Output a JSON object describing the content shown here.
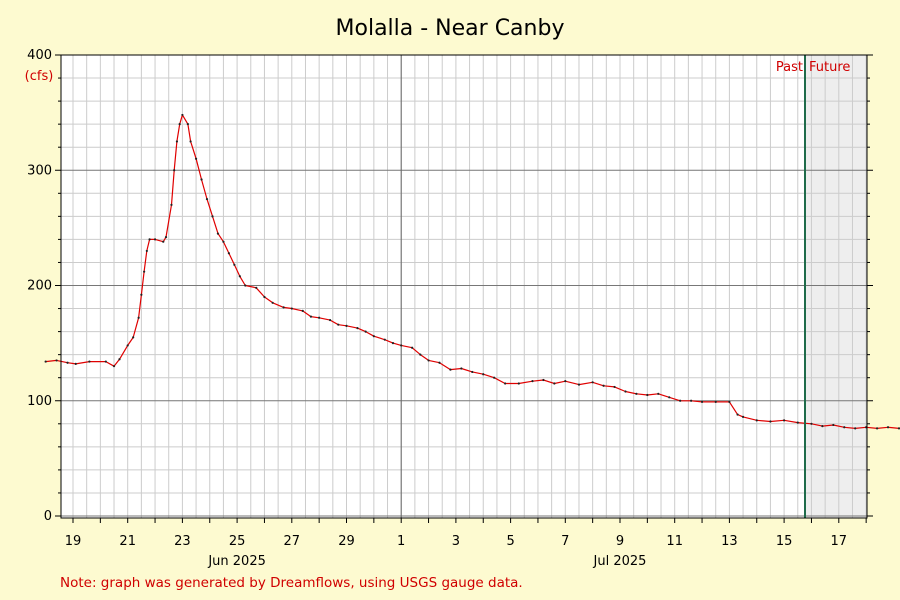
{
  "chart_data": {
    "type": "line",
    "title": "Molalla - Near Canby",
    "ylabel": "(cfs)",
    "xlabel": "",
    "ylim": [
      0,
      400
    ],
    "y_ticks": [
      0,
      100,
      200,
      300,
      400
    ],
    "x_tick_labels": [
      "19",
      "21",
      "23",
      "25",
      "27",
      "29",
      "1",
      "3",
      "5",
      "7",
      "9",
      "11",
      "13",
      "15",
      "17"
    ],
    "month_labels": [
      {
        "label": "Jun 2025",
        "at": 25
      },
      {
        "label": "Jul 2025",
        "at": 39
      }
    ],
    "past_label": "Past",
    "future_label": "Future",
    "note": "Note: graph was generated by Dreamflows, using USGS gauge data.",
    "grid": true,
    "colors": {
      "series": "#e00000",
      "now_line": "#1f6b4a",
      "future_shade": "#eeeeee",
      "background": "#fdfad0",
      "plot_background": "#ffffff"
    },
    "series": [
      {
        "points": [
          [
            18.0,
            134
          ],
          [
            18.4,
            135
          ],
          [
            18.8,
            133
          ],
          [
            19.1,
            132
          ],
          [
            19.6,
            134
          ],
          [
            20.2,
            134
          ],
          [
            20.5,
            130
          ],
          [
            20.7,
            136
          ],
          [
            21.0,
            148
          ],
          [
            21.2,
            155
          ],
          [
            21.4,
            172
          ],
          [
            21.5,
            192
          ],
          [
            21.6,
            212
          ],
          [
            21.7,
            230
          ],
          [
            21.8,
            240
          ],
          [
            22.0,
            240
          ],
          [
            22.3,
            238
          ],
          [
            22.4,
            242
          ],
          [
            22.6,
            270
          ],
          [
            22.7,
            300
          ],
          [
            22.8,
            325
          ],
          [
            22.9,
            340
          ],
          [
            23.0,
            348
          ],
          [
            23.2,
            340
          ],
          [
            23.3,
            325
          ],
          [
            23.5,
            310
          ],
          [
            23.7,
            292
          ],
          [
            23.9,
            275
          ],
          [
            24.1,
            260
          ],
          [
            24.3,
            245
          ],
          [
            24.5,
            238
          ],
          [
            24.7,
            228
          ],
          [
            24.9,
            218
          ],
          [
            25.1,
            208
          ],
          [
            25.3,
            200
          ],
          [
            25.7,
            198
          ],
          [
            26.0,
            190
          ],
          [
            26.3,
            185
          ],
          [
            26.7,
            181
          ],
          [
            27.0,
            180
          ],
          [
            27.4,
            178
          ],
          [
            27.7,
            173
          ],
          [
            28.0,
            172
          ],
          [
            28.4,
            170
          ],
          [
            28.7,
            166
          ],
          [
            29.0,
            165
          ],
          [
            29.4,
            163
          ],
          [
            29.7,
            160
          ],
          [
            30.0,
            156
          ],
          [
            30.4,
            153
          ],
          [
            30.7,
            150
          ],
          [
            31.0,
            148
          ],
          [
            31.4,
            146
          ],
          [
            31.7,
            140
          ],
          [
            32.0,
            135
          ],
          [
            32.4,
            133
          ],
          [
            32.8,
            127
          ],
          [
            33.2,
            128
          ],
          [
            33.6,
            125
          ],
          [
            34.0,
            123
          ],
          [
            34.4,
            120
          ],
          [
            34.8,
            115
          ],
          [
            35.3,
            115
          ],
          [
            35.8,
            117
          ],
          [
            36.2,
            118
          ],
          [
            36.6,
            115
          ],
          [
            37.0,
            117
          ],
          [
            37.5,
            114
          ],
          [
            38.0,
            116
          ],
          [
            38.4,
            113
          ],
          [
            38.8,
            112
          ],
          [
            39.2,
            108
          ],
          [
            39.6,
            106
          ],
          [
            40.0,
            105
          ],
          [
            40.4,
            106
          ],
          [
            40.8,
            103
          ],
          [
            41.2,
            100
          ],
          [
            41.6,
            100
          ],
          [
            42.0,
            99
          ],
          [
            42.5,
            99
          ],
          [
            43.0,
            99
          ],
          [
            43.3,
            88
          ],
          [
            43.5,
            86
          ],
          [
            44.0,
            83
          ],
          [
            44.5,
            82
          ],
          [
            45.0,
            83
          ],
          [
            45.5,
            81
          ],
          [
            46.0,
            80
          ],
          [
            46.4,
            78
          ],
          [
            46.8,
            79
          ],
          [
            47.2,
            77
          ],
          [
            47.6,
            76
          ],
          [
            48.0,
            77
          ],
          [
            48.4,
            76
          ],
          [
            48.8,
            77
          ],
          [
            49.2,
            76
          ],
          [
            49.6,
            76
          ],
          [
            49.9,
            73
          ],
          [
            50.1,
            75
          ]
        ]
      }
    ]
  }
}
